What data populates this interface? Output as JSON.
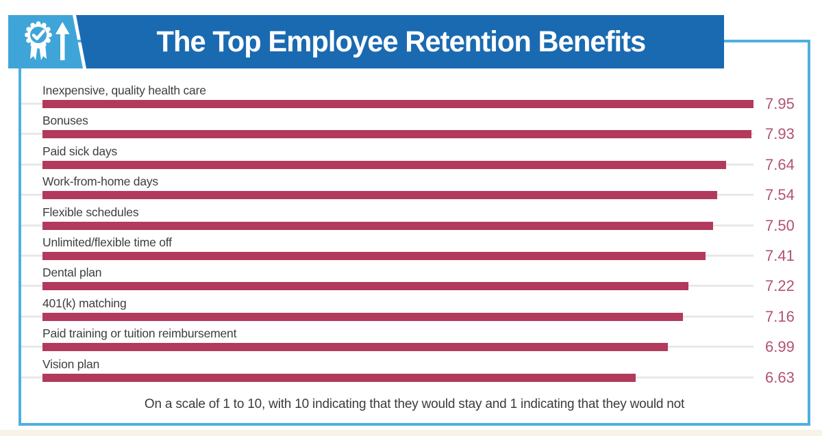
{
  "header": {
    "title": "The Top Employee Retention Benefits"
  },
  "icons": {
    "badge": "award-ribbon-icon",
    "arrow": "up-arrow-icon"
  },
  "colors": {
    "banner_blue": "#1a6ab1",
    "badge_light_blue": "#3fa5d8",
    "card_border_blue": "#4fb0de",
    "bar_color": "#b23a5c",
    "value_text_color": "#b35270",
    "label_text_color": "#3e3e3e",
    "track_color": "#e9e7e7"
  },
  "chart_data": {
    "type": "bar",
    "orientation": "horizontal",
    "title": "The Top Employee Retention Benefits",
    "categories": [
      "Inexpensive, quality health care",
      "Bonuses",
      "Paid sick days",
      "Work-from-home days",
      "Flexible schedules",
      "Unlimited/flexible time off",
      "Dental plan",
      "401(k) matching",
      "Paid training or tuition reimbursement",
      "Vision plan"
    ],
    "values": [
      7.95,
      7.93,
      7.64,
      7.54,
      7.5,
      7.41,
      7.22,
      7.16,
      6.99,
      6.63
    ],
    "value_labels": [
      "7.95",
      "7.93",
      "7.64",
      "7.54",
      "7.50",
      "7.41",
      "7.22",
      "7.16",
      "6.99",
      "6.63"
    ],
    "xlim": [
      0,
      7.95
    ],
    "xlabel": "",
    "ylabel": "",
    "grid": false,
    "legend": false,
    "note": "On a scale of 1 to 10, with 10 indicating that they would stay and 1 indicating that they would not"
  }
}
